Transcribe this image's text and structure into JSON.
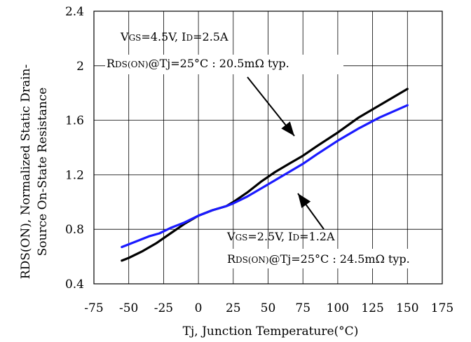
{
  "chart_data": {
    "type": "line",
    "title": "",
    "xlabel": "Tj, Junction Temperature(°C)",
    "ylabel_line1": "RDS(ON), Normalized Static Drain-",
    "ylabel_line2": "Source On-State Resistance",
    "xlim": [
      -75,
      175
    ],
    "ylim": [
      0.4,
      2.4
    ],
    "x_ticks": [
      -75,
      -50,
      -25,
      0,
      25,
      50,
      75,
      100,
      125,
      150,
      175
    ],
    "y_ticks": [
      0.4,
      0.8,
      1.2,
      1.6,
      2.0,
      2.4
    ],
    "x_tick_labels": [
      "-75",
      "-50",
      "-25",
      "0",
      "25",
      "50",
      "75",
      "100",
      "125",
      "150",
      "175"
    ],
    "y_tick_labels": [
      "0.4",
      "0.8",
      "1.2",
      "1.6",
      "2",
      "2.4"
    ],
    "grid": true,
    "series": [
      {
        "color": "#000000",
        "x": [
          -55,
          -50,
          -40,
          -30,
          -20,
          -10,
          0,
          10,
          20,
          25,
          35,
          45,
          55,
          65,
          75,
          85,
          100,
          115,
          130,
          150
        ],
        "y": [
          0.57,
          0.59,
          0.64,
          0.7,
          0.77,
          0.84,
          0.9,
          0.94,
          0.97,
          1.0,
          1.07,
          1.15,
          1.22,
          1.28,
          1.34,
          1.41,
          1.51,
          1.62,
          1.71,
          1.83
        ]
      },
      {
        "color": "#1a1aff",
        "x": [
          -55,
          -45,
          -35,
          -28,
          -20,
          -10,
          0,
          10,
          20,
          25,
          35,
          45,
          55,
          65,
          75,
          85,
          100,
          115,
          130,
          150
        ],
        "y": [
          0.67,
          0.71,
          0.75,
          0.77,
          0.81,
          0.85,
          0.9,
          0.94,
          0.97,
          0.99,
          1.04,
          1.1,
          1.16,
          1.22,
          1.28,
          1.35,
          1.45,
          1.54,
          1.62,
          1.71
        ]
      }
    ],
    "annotations": [
      {
        "line1": {
          "parts": [
            {
              "t": "V"
            },
            {
              "t": "GS",
              "sub": true
            },
            {
              "t": "=4.5V, I"
            },
            {
              "t": "D",
              "sub": true
            },
            {
              "t": "=2.5A"
            }
          ]
        },
        "line2": {
          "parts": [
            {
              "t": "R"
            },
            {
              "t": "DS(ON)",
              "sub": true
            },
            {
              "t": "@Tj=25°C : 20.5mΩ  typ."
            }
          ]
        }
      },
      {
        "line1": {
          "parts": [
            {
              "t": "V"
            },
            {
              "t": "GS",
              "sub": true
            },
            {
              "t": "=2.5V, I"
            },
            {
              "t": "D",
              "sub": true
            },
            {
              "t": "=1.2A"
            }
          ]
        },
        "line2": {
          "parts": [
            {
              "t": "R"
            },
            {
              "t": "DS(ON)",
              "sub": true
            },
            {
              "t": "@Tj=25°C : 24.5mΩ  typ."
            }
          ]
        }
      }
    ]
  }
}
